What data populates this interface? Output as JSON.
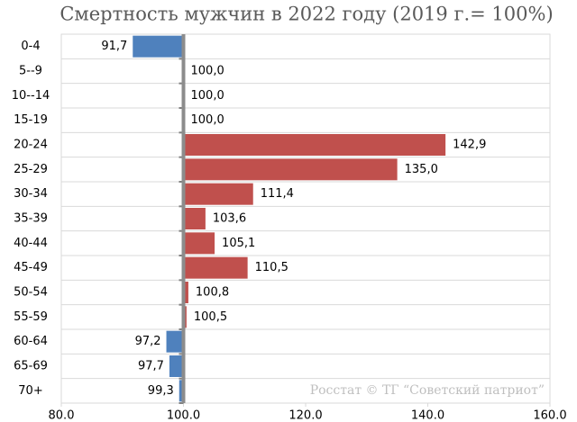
{
  "chart_data": {
    "type": "bar",
    "orientation": "horizontal",
    "title": "Смертность мужчин в 2022 году (2019 г.= 100%)",
    "source": "Росстат © ТГ “Советский патриот”",
    "categories": [
      "0-4",
      "5--9",
      "10--14",
      "15-19",
      "20-24",
      "25-29",
      "30-34",
      "35-39",
      "40-44",
      "45-49",
      "50-54",
      "55-59",
      "60-64",
      "65-69",
      "70+"
    ],
    "values": [
      91.7,
      100.0,
      100.0,
      100.0,
      142.9,
      135.0,
      111.4,
      103.6,
      105.1,
      110.5,
      100.8,
      100.5,
      97.2,
      97.7,
      99.3
    ],
    "value_labels": [
      "91,7",
      "100,0",
      "100,0",
      "100,0",
      "142,9",
      "135,0",
      "111,4",
      "103,6",
      "105,1",
      "110,5",
      "100,8",
      "100,5",
      "97,2",
      "97,7",
      "99,3"
    ],
    "baseline": 100,
    "color_below": "#4f81bd",
    "color_above": "#c0504d",
    "xlim": [
      80,
      160
    ],
    "xticks": [
      {
        "value": 80,
        "label": "80.0"
      },
      {
        "value": 100,
        "label": "100.0"
      },
      {
        "value": 120,
        "label": "120.0"
      },
      {
        "value": 140,
        "label": "140.0"
      },
      {
        "value": 160,
        "label": "160.0"
      }
    ],
    "grid": true
  }
}
